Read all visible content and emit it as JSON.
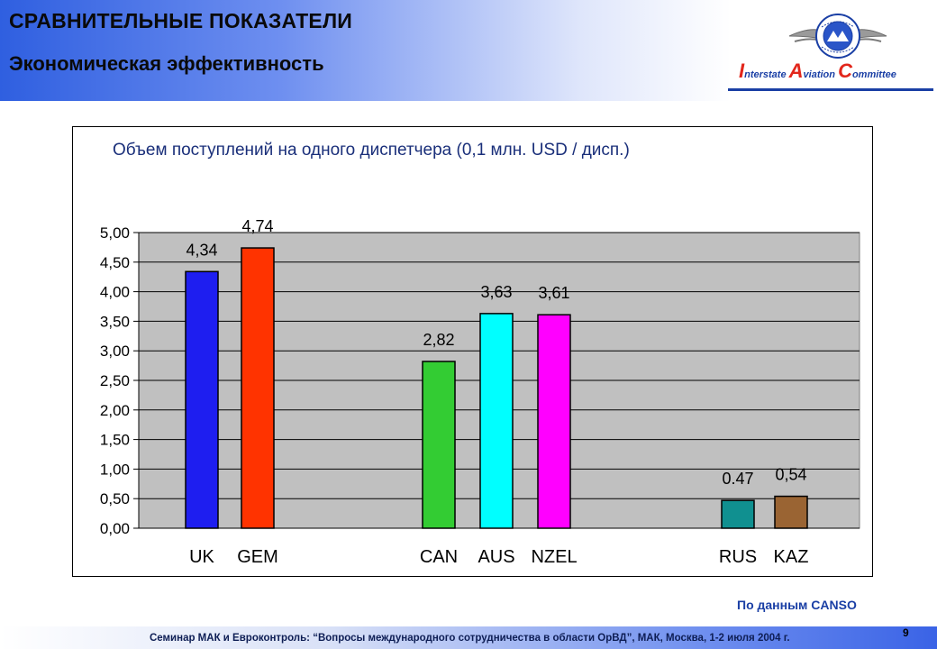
{
  "slide": {
    "title": "СРАВНИТЕЛЬНЫЕ ПОКАЗАТЕЛИ",
    "subtitle": "Экономическая эффективность",
    "org_name": {
      "i": "I",
      "i_rest": "nterstate ",
      "a": "A",
      "a_rest": "viation ",
      "c": "C",
      "c_rest": "ommittee"
    },
    "source": "По данным CANSO",
    "footer": "Семинар МАК и Евроконтроль: “Вопросы международного сотрудничества в области ОрВД”, МАК, Москва, 1-2 июля 2004 г.",
    "page_number": "9"
  },
  "colors": {
    "header_blue": "#2f5fe0",
    "brand_blue": "#1a3fa5",
    "brand_red": "#e2261b",
    "plot_bg": "#c0c0c0"
  },
  "chart_data": {
    "type": "bar",
    "title": "Объем поступлений на одного диспетчера (0,1 млн. USD / дисп.)",
    "xlabel": "",
    "ylabel": "",
    "ylim": [
      0,
      5
    ],
    "grid": true,
    "legend": "none",
    "yticks": [
      "0,00",
      "0,50",
      "1,00",
      "1,50",
      "2,00",
      "2,50",
      "3,00",
      "3,50",
      "4,00",
      "4,50",
      "5,00"
    ],
    "categories": [
      "UK",
      "GEM",
      "CAN",
      "AUS",
      "NZEL",
      "RUS",
      "KAZ"
    ],
    "values": [
      4.34,
      4.74,
      2.82,
      3.63,
      3.61,
      0.47,
      0.54
    ],
    "data_labels": [
      "4,34",
      "4,74",
      "2,82",
      "3,63",
      "3,61",
      "0.47",
      "0,54"
    ],
    "bar_colors": [
      "#1e1ef0",
      "#ff3300",
      "#33cc33",
      "#00ffff",
      "#ff00ff",
      "#109090",
      "#9a6433"
    ]
  }
}
